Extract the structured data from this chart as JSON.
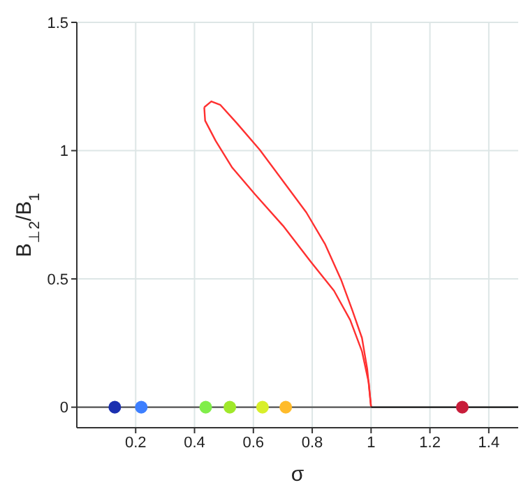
{
  "chart_data": {
    "type": "line",
    "xlabel": "σ",
    "ylabel": "B$_{⊥2}$/B$_{1}$",
    "xlim": [
      0,
      1.5
    ],
    "ylim": [
      -0.08,
      1.5
    ],
    "xticks": [
      0.2,
      0.4,
      0.6,
      0.8,
      1,
      1.2,
      1.4
    ],
    "yticks": [
      0,
      0.5,
      1,
      1.5
    ],
    "grid": true,
    "series": [
      {
        "color": "#ff3030",
        "x": [
          1,
          0.987,
          0.969,
          0.937,
          0.898,
          0.843,
          0.78,
          0.701,
          0.622,
          0.543,
          0.488,
          0.457,
          0.433
        ],
        "values": [
          0,
          0.148,
          0.27,
          0.375,
          0.497,
          0.637,
          0.759,
          0.881,
          1.003,
          1.108,
          1.178,
          1.192,
          1.169
        ]
      },
      {
        "color": "#ff3030",
        "x": [
          0.433,
          0.436,
          0.472,
          0.528,
          0.606,
          0.701,
          0.795,
          0.874,
          0.929,
          0.969,
          0.992,
          1
        ],
        "values": [
          1.169,
          1.117,
          1.038,
          0.934,
          0.829,
          0.707,
          0.567,
          0.454,
          0.34,
          0.218,
          0.096,
          0
        ]
      },
      {
        "color": "#555555",
        "x": [
          0,
          1
        ],
        "values": [
          0,
          0
        ]
      },
      {
        "color": "#111111",
        "x": [
          1,
          1.5
        ],
        "values": [
          0,
          0
        ]
      },
      {
        "type": "scatter",
        "marker": "circle",
        "colors": [
          "#1a2fb0",
          "#3d7fff",
          "#80ee4a",
          "#a0e82a",
          "#d8ef2a",
          "#ffbb2a",
          "#c81d3a"
        ],
        "x": [
          0.129,
          0.219,
          0.438,
          0.52,
          0.631,
          0.71,
          1.31
        ],
        "values": [
          0,
          0,
          0,
          0,
          0,
          0,
          0
        ]
      }
    ]
  }
}
